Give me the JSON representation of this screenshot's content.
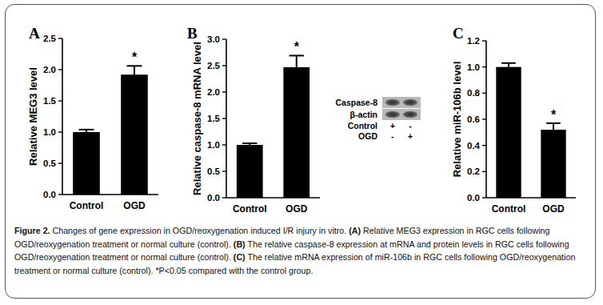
{
  "chart_data": [
    {
      "type": "bar",
      "title": "A",
      "y_label": "Relative MEG3 level",
      "categories": [
        "Control",
        "OGD"
      ],
      "values": [
        1.0,
        1.92
      ],
      "errors": [
        0.04,
        0.14
      ],
      "color": "#000000",
      "ylim": [
        0,
        2.5
      ],
      "yticks": [
        {
          "value": 0,
          "label": "0.0"
        },
        0.5,
        {
          "value": 1,
          "label": "1.0"
        },
        1.5,
        {
          "value": 2,
          "label": "2.0"
        },
        2.5
      ],
      "grid": false,
      "annotations": [
        {
          "text": "*",
          "category": "OGD"
        }
      ]
    },
    {
      "type": "bar",
      "title": "B",
      "y_label": "Relative caspase-8 mRNA level",
      "categories": [
        "Control",
        "OGD"
      ],
      "values": [
        1.0,
        2.47
      ],
      "errors": [
        0.03,
        0.22
      ],
      "color": "#000000",
      "ylim": [
        0,
        3
      ],
      "yticks": [
        {
          "value": 0,
          "label": "0.0"
        },
        0.5,
        {
          "value": 1,
          "label": "1.0"
        },
        1.5,
        {
          "value": 2,
          "label": "2.0"
        },
        2.5,
        {
          "value": 3,
          "label": "3.0"
        }
      ],
      "grid": false,
      "annotations": [
        {
          "text": "*",
          "category": "OGD"
        }
      ]
    },
    {
      "type": "bar",
      "title": "C",
      "y_label": "Relative miR-106b level",
      "categories": [
        "Control",
        "OGD"
      ],
      "values": [
        1.0,
        0.52
      ],
      "errors": [
        0.03,
        0.05
      ],
      "color": "#000000",
      "ylim": [
        0,
        1.2
      ],
      "yticks": [
        {
          "value": 0,
          "label": "0.0"
        },
        0.2,
        0.4,
        0.6,
        0.8,
        {
          "value": 1,
          "label": "1.0"
        },
        1.2
      ],
      "grid": false,
      "annotations": [
        {
          "text": "*",
          "category": "OGD"
        }
      ]
    }
  ],
  "blot": {
    "rows": [
      "Caspase-8",
      "β-actin"
    ],
    "conditions": [
      {
        "label": "Control",
        "signs": [
          "+",
          "-"
        ]
      },
      {
        "label": "OGD",
        "signs": [
          "-",
          "+"
        ]
      }
    ]
  },
  "caption": [
    {
      "text": "Figure 2.",
      "bold": true
    },
    {
      "text": " Changes of gene expression in OGD/reoxygenation induced I/R injury in vitro. ",
      "bold": false
    },
    {
      "text": "(A)",
      "bold": true
    },
    {
      "text": " Relative MEG3 expression in RGC cells following OGD/reoxygenation treatment or normal culture (control). ",
      "bold": false
    },
    {
      "text": "(B)",
      "bold": true
    },
    {
      "text": " The relative caspase-8 expression at mRNA and protein levels in RGC cells following OGD/reoxygenation treatment or normal culture (control). ",
      "bold": false
    },
    {
      "text": "(C)",
      "bold": true
    },
    {
      "text": " The relative mRNA expression of miR-106b in RGC cells following OGD/reoxygenation treatment or normal culture (control). *P<0.05 compared with the control group.",
      "bold": false
    }
  ]
}
